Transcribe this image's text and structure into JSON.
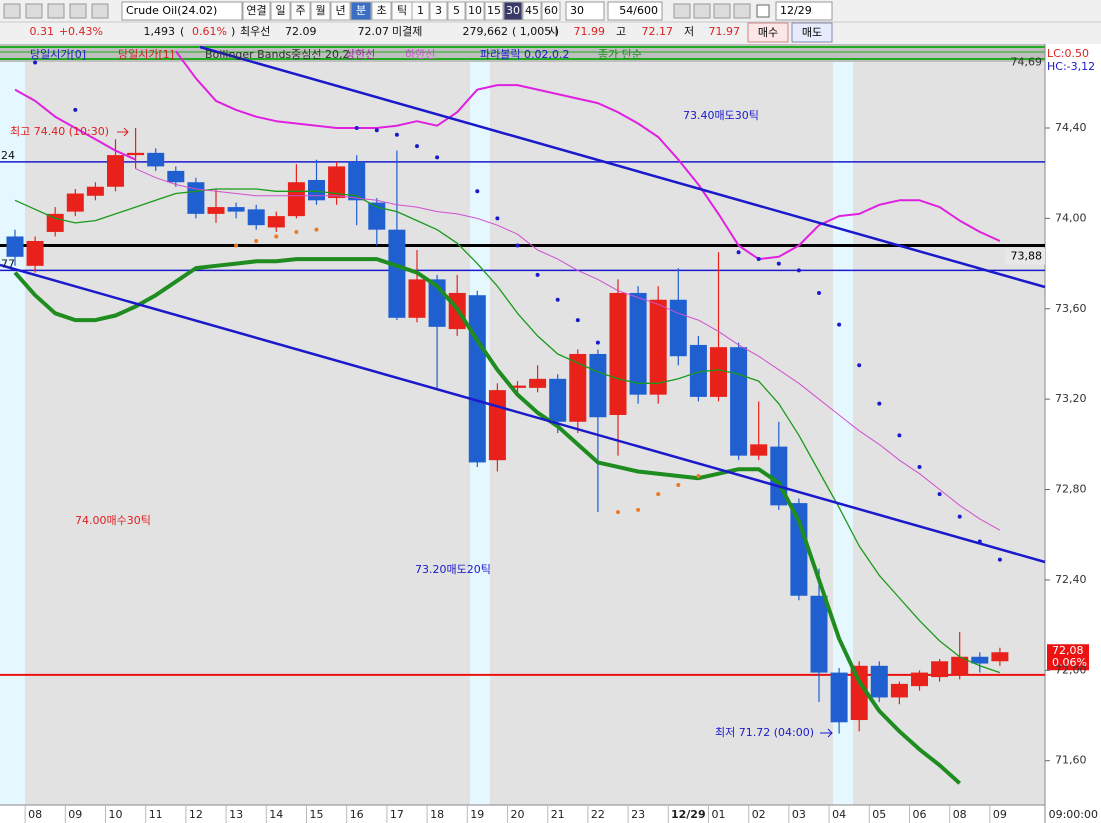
{
  "toolbar": {
    "symbol": "Crude Oil(24.02)",
    "periods": [
      "연결",
      "일",
      "주",
      "월",
      "년",
      "분",
      "초",
      "틱"
    ],
    "intervals": [
      "1",
      "3",
      "5",
      "10",
      "15",
      "30",
      "45",
      "60"
    ],
    "count": "30",
    "range": "54/600",
    "date": "12/29"
  },
  "quote": {
    "change": "0.31",
    "change_pct": "+0.43%",
    "volume": "1,493",
    "paren_open": "(",
    "volume_pct": "0.61%",
    "paren_close": ")",
    "best_label": "최우선",
    "best_bid": "72.09",
    "best_ask": "72.07",
    "oi_label": "미결제",
    "oi": "279,662",
    "oi_change": "( 1,005 )",
    "open_label": "시",
    "open": "71.99",
    "high_label": "고",
    "high": "72.17",
    "low_label": "저",
    "low": "71.97",
    "buy": "매수",
    "sell": "매도"
  },
  "chart_data": {
    "type": "candlestick",
    "categories": [
      null,
      "08",
      null,
      "09",
      null,
      "10",
      null,
      "11",
      null,
      "12",
      null,
      "13",
      null,
      "14",
      null,
      "15",
      null,
      "16",
      null,
      "17",
      null,
      "18",
      null,
      "19",
      null,
      "20",
      null,
      "21",
      null,
      "22",
      null,
      "23",
      null,
      "12/29",
      null,
      "01",
      null,
      "02",
      null,
      "03",
      null,
      "04",
      null,
      "05",
      null,
      "06",
      null,
      "08",
      null,
      "09"
    ],
    "open": [
      73.92,
      73.79,
      73.94,
      74.03,
      74.1,
      74.14,
      74.28,
      74.29,
      74.21,
      74.16,
      74.02,
      74.05,
      74.04,
      73.96,
      74.01,
      74.17,
      74.09,
      74.25,
      74.07,
      73.95,
      73.56,
      73.73,
      73.51,
      73.66,
      72.93,
      73.25,
      73.25,
      73.29,
      73.1,
      73.4,
      73.13,
      73.67,
      73.22,
      73.64,
      73.44,
      73.21,
      73.43,
      72.95,
      72.99,
      72.74,
      72.33,
      71.99,
      71.78,
      72.02,
      71.88,
      71.93,
      71.97,
      71.98,
      72.06,
      72.04
    ],
    "high": [
      73.95,
      73.92,
      74.05,
      74.13,
      74.16,
      74.35,
      74.4,
      74.31,
      74.23,
      74.18,
      74.13,
      74.07,
      74.06,
      74.03,
      74.24,
      74.26,
      74.25,
      74.28,
      74.09,
      74.3,
      73.86,
      73.75,
      73.75,
      73.68,
      73.27,
      73.28,
      73.35,
      73.31,
      73.42,
      73.42,
      73.73,
      73.7,
      73.7,
      73.78,
      73.48,
      73.85,
      73.45,
      73.19,
      73.1,
      72.76,
      72.45,
      72.01,
      72.04,
      72.04,
      71.95,
      72.0,
      72.05,
      72.17,
      72.08,
      72.1
    ],
    "low": [
      73.79,
      73.76,
      73.92,
      74.01,
      74.08,
      74.12,
      74.22,
      74.21,
      74.14,
      74.0,
      73.98,
      74.0,
      73.95,
      73.94,
      74.0,
      74.06,
      74.06,
      73.97,
      73.88,
      73.55,
      73.54,
      73.24,
      73.48,
      72.9,
      72.88,
      73.22,
      73.23,
      73.05,
      73.05,
      72.7,
      72.95,
      73.18,
      73.18,
      73.35,
      73.19,
      73.19,
      72.93,
      72.93,
      72.71,
      72.31,
      71.86,
      71.72,
      71.73,
      71.86,
      71.85,
      71.91,
      71.95,
      71.96,
      71.99,
      72.02
    ],
    "close": [
      73.83,
      73.9,
      74.02,
      74.11,
      74.14,
      74.28,
      74.29,
      74.23,
      74.16,
      74.02,
      74.05,
      74.03,
      73.97,
      74.01,
      74.16,
      74.08,
      74.23,
      74.08,
      73.95,
      73.56,
      73.73,
      73.52,
      73.67,
      72.92,
      73.24,
      73.26,
      73.29,
      73.1,
      73.4,
      73.12,
      73.67,
      73.22,
      73.64,
      73.39,
      73.21,
      73.43,
      72.95,
      73.0,
      72.73,
      72.33,
      71.99,
      71.77,
      72.02,
      71.88,
      71.94,
      71.99,
      72.04,
      72.06,
      72.03,
      72.08
    ],
    "up_color": "#e8211b",
    "down_color": "#1f5fd0",
    "ylim": [
      71.404,
      74.754
    ],
    "yticks": [
      {
        "value": 71.6,
        "label": "71,60"
      },
      {
        "value": 72.0,
        "label": "72,00"
      },
      {
        "value": 72.4,
        "label": "72,40"
      },
      {
        "value": 72.8,
        "label": "72,80"
      },
      {
        "value": 73.2,
        "label": "73,20"
      },
      {
        "value": 73.6,
        "label": "73,60"
      },
      {
        "value": 74.0,
        "label": "74,00"
      },
      {
        "value": 74.4,
        "label": "74,40"
      }
    ],
    "series": [
      {
        "style": "line",
        "color": "#1e8c1e",
        "width": 4,
        "values": [
          73.76,
          73.66,
          73.58,
          73.55,
          73.55,
          73.57,
          73.61,
          73.66,
          73.72,
          73.78,
          73.79,
          73.8,
          73.81,
          73.81,
          73.82,
          73.82,
          73.82,
          73.82,
          73.82,
          73.79,
          73.76,
          73.7,
          73.6,
          73.46,
          73.33,
          73.22,
          73.14,
          73.08,
          73.0,
          72.92,
          72.9,
          72.88,
          72.87,
          72.86,
          72.85,
          72.87,
          72.89,
          72.89,
          72.83,
          72.66,
          72.4,
          72.14,
          71.95,
          71.82,
          71.73,
          71.65,
          71.58,
          71.5,
          null,
          null
        ]
      },
      {
        "style": "line",
        "color": "#1a9a1a",
        "width": 1.3,
        "values": [
          74.08,
          74.04,
          74.0,
          73.98,
          73.99,
          74.02,
          74.05,
          74.08,
          74.11,
          74.12,
          74.13,
          74.13,
          74.13,
          74.12,
          74.12,
          74.12,
          74.11,
          74.1,
          74.05,
          74.03,
          73.99,
          73.95,
          73.89,
          73.8,
          73.7,
          73.58,
          73.48,
          73.4,
          73.36,
          73.32,
          73.29,
          73.27,
          73.27,
          73.29,
          73.32,
          73.33,
          73.31,
          73.28,
          73.18,
          73.04,
          72.88,
          72.72,
          72.55,
          72.42,
          72.32,
          72.22,
          72.13,
          72.06,
          72.02,
          71.99
        ]
      },
      {
        "style": "line",
        "color": "#e020e0",
        "width": 2,
        "values": [
          74.57,
          74.52,
          74.45,
          74.4,
          74.35,
          74.3,
          74.26,
          null,
          74.74,
          74.62,
          74.52,
          74.48,
          74.45,
          74.43,
          74.42,
          74.41,
          74.4,
          74.4,
          74.4,
          74.41,
          74.43,
          74.41,
          74.47,
          74.57,
          74.59,
          74.59,
          74.57,
          74.55,
          74.53,
          74.51,
          74.47,
          74.42,
          74.36,
          74.26,
          74.15,
          74.02,
          73.88,
          73.82,
          73.83,
          73.88,
          73.97,
          74.01,
          74.02,
          74.06,
          74.08,
          74.08,
          74.05,
          73.99,
          73.94,
          73.9
        ]
      },
      {
        "style": "line",
        "color": "#d050d0",
        "width": 1,
        "values": [
          null,
          null,
          null,
          null,
          null,
          null,
          74.22,
          74.18,
          74.15,
          74.13,
          74.12,
          74.11,
          74.1,
          74.1,
          74.1,
          74.1,
          74.1,
          74.09,
          74.08,
          74.06,
          74.05,
          74.03,
          74.02,
          74.0,
          73.97,
          73.93,
          73.86,
          73.82,
          73.77,
          73.73,
          73.68,
          73.65,
          73.62,
          73.58,
          73.55,
          73.5,
          73.44,
          73.39,
          73.33,
          73.27,
          73.2,
          73.13,
          73.06,
          73.0,
          72.93,
          72.87,
          72.8,
          72.73,
          72.67,
          72.62
        ]
      },
      {
        "style": "dots",
        "color": "#1a1acc",
        "values": [
          null,
          74.69,
          null,
          74.48,
          null,
          null,
          null,
          null,
          null,
          null,
          null,
          null,
          null,
          null,
          null,
          null,
          null,
          74.4,
          74.39,
          74.37,
          74.32,
          74.27,
          null,
          74.12,
          74.0,
          73.88,
          73.75,
          73.64,
          73.55,
          73.45,
          null,
          null,
          null,
          null,
          null,
          null,
          73.85,
          73.82,
          73.8,
          73.77,
          73.67,
          73.53,
          73.35,
          73.18,
          73.04,
          72.9,
          72.78,
          72.68,
          72.57,
          72.49
        ]
      },
      {
        "style": "dots",
        "color": "#f07820",
        "values": [
          null,
          null,
          null,
          null,
          null,
          null,
          null,
          null,
          null,
          null,
          null,
          73.88,
          73.9,
          73.92,
          73.94,
          73.95,
          null,
          null,
          null,
          null,
          null,
          null,
          null,
          null,
          null,
          null,
          null,
          null,
          null,
          null,
          72.7,
          72.71,
          72.78,
          72.82,
          72.86,
          null,
          null,
          null,
          null,
          null,
          null,
          null,
          null,
          null,
          null,
          null,
          null,
          null,
          null,
          null
        ]
      }
    ],
    "hlines": [
      {
        "value": 74.25,
        "color": "#1a1acc",
        "width": 1.5,
        "label": "24"
      },
      {
        "value": 73.88,
        "color": "#000000",
        "width": 3,
        "label": "73,88"
      },
      {
        "value": 73.77,
        "color": "#1a1acc",
        "width": 1.5,
        "label": "77"
      },
      {
        "value": 71.98,
        "color": "#ee1111",
        "width": 2
      }
    ],
    "legend": [
      {
        "text": "당일시가[0]",
        "color": "#2020c0"
      },
      {
        "text": "당일시가[1]",
        "color": "#d02020"
      },
      {
        "text": "Bollinger Bands중심선 20,2",
        "color": "#303030"
      },
      {
        "text": "상한선",
        "color": "#a020a0"
      },
      {
        "text": "하한선",
        "color": "#d050d0"
      },
      {
        "text": "파라볼릭 0.02,0.2",
        "color": "#1a1acc"
      },
      {
        "text": "종가 단순",
        "color": "#1e8c1e"
      }
    ],
    "annotations": [
      {
        "text": "최고 74.40 (10:30)",
        "color": "#e02020",
        "size": 11
      },
      {
        "text": "최저 71.72 (04:00)",
        "color": "#1a1acc",
        "size": 11
      },
      {
        "text": "73.40매도30틱",
        "color": "#1a1acc",
        "size": 24
      },
      {
        "text": "74.00매수30틱",
        "color": "#e02020",
        "size": 24
      },
      {
        "text": "73.20매도20틱",
        "color": "#1a1acc",
        "size": 24
      }
    ],
    "top_label": {
      "value": 74.69,
      "label": "74,69"
    },
    "price_label": {
      "value": 72.08,
      "label": "72,08"
    },
    "change_label": "0.06%",
    "lc": "LC:0.50",
    "hc": "HC:-3,12",
    "time": "09:00:00"
  }
}
